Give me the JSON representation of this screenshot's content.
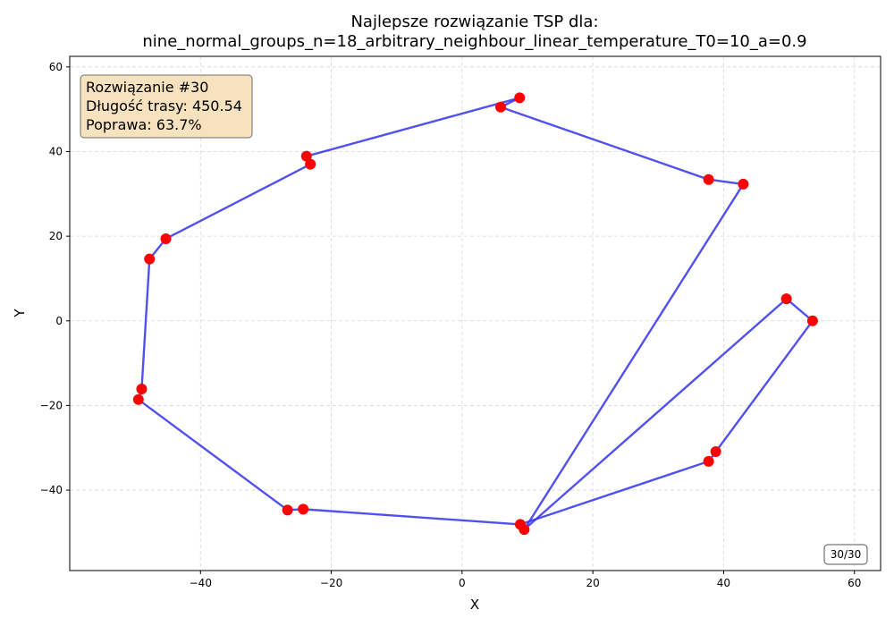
{
  "chart_data": {
    "type": "line",
    "title": [
      "Najlepsze rozwiązanie TSP dla:",
      "nine_normal_groups_n=18_arbitrary_neighbour_linear_temperature_T0=10_a=0.9"
    ],
    "xlabel": "X",
    "ylabel": "Y",
    "xlim": [
      -60,
      64
    ],
    "ylim": [
      -59,
      62.5
    ],
    "xticks": [
      -40,
      -20,
      0,
      20,
      40,
      60
    ],
    "yticks": [
      -40,
      -20,
      0,
      20,
      40,
      60
    ],
    "grid": true,
    "route_color": "#3333ee",
    "point_color": "#ff0000",
    "route": [
      {
        "x": 5.9,
        "y": 50.5
      },
      {
        "x": 8.8,
        "y": 52.7
      },
      {
        "x": -23.8,
        "y": 38.9
      },
      {
        "x": -23.2,
        "y": 37.0
      },
      {
        "x": -45.3,
        "y": 19.4
      },
      {
        "x": -47.8,
        "y": 14.6
      },
      {
        "x": -49.0,
        "y": -16.1
      },
      {
        "x": -49.5,
        "y": -18.6
      },
      {
        "x": -26.7,
        "y": -44.7
      },
      {
        "x": -24.3,
        "y": -44.5
      },
      {
        "x": 8.9,
        "y": -48.1
      },
      {
        "x": 37.7,
        "y": -33.2
      },
      {
        "x": 38.8,
        "y": -30.9
      },
      {
        "x": 53.6,
        "y": 0.0
      },
      {
        "x": 49.6,
        "y": 5.2
      },
      {
        "x": 9.5,
        "y": -49.3
      },
      {
        "x": 43.0,
        "y": 32.3
      },
      {
        "x": 37.7,
        "y": 33.4
      },
      {
        "x": 5.9,
        "y": 50.5
      }
    ]
  },
  "info_box": {
    "line1": "Rozwiązanie #30",
    "line2": "Długość trasy: 450.54",
    "line3": "Poprawa: 63.7%",
    "bg_color": "#f5deb3"
  },
  "counter": "30/30"
}
